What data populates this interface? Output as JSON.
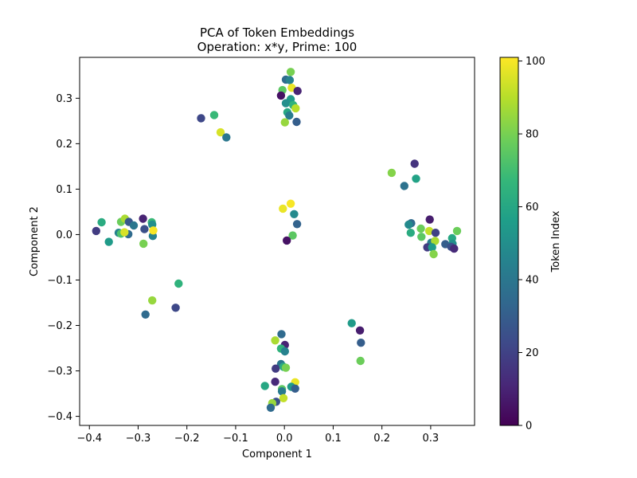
{
  "chart_data": {
    "type": "scatter",
    "title": "PCA of Token Embeddings",
    "subtitle": "Operation: x*y, Prime: 100",
    "xlabel": "Component 1",
    "ylabel": "Component 2",
    "xlim": [
      -0.42,
      0.39
    ],
    "ylim": [
      -0.42,
      0.39
    ],
    "xticks": [
      -0.4,
      -0.3,
      -0.2,
      -0.1,
      0.0,
      0.1,
      0.2,
      0.3
    ],
    "xtick_labels": [
      "−0.4",
      "−0.3",
      "−0.2",
      "−0.1",
      "0.0",
      "0.1",
      "0.2",
      "0.3"
    ],
    "yticks": [
      -0.4,
      -0.3,
      -0.2,
      -0.1,
      0.0,
      0.1,
      0.2,
      0.3
    ],
    "ytick_labels": [
      "−0.4",
      "−0.3",
      "−0.2",
      "−0.1",
      "0.0",
      "0.1",
      "0.2",
      "0.3"
    ],
    "grid": false,
    "colorbar": {
      "label": "Token Index",
      "colormap": "viridis",
      "range": [
        0,
        101
      ],
      "ticks": [
        0,
        20,
        40,
        60,
        80,
        100
      ],
      "tick_labels": [
        "0",
        "20",
        "40",
        "60",
        "80",
        "100"
      ]
    },
    "points": [
      {
        "x": 0.013,
        "y": 0.358,
        "c": 80
      },
      {
        "x": 0.003,
        "y": 0.341,
        "c": 35
      },
      {
        "x": 0.011,
        "y": 0.34,
        "c": 45
      },
      {
        "x": -0.004,
        "y": 0.318,
        "c": 75
      },
      {
        "x": 0.015,
        "y": 0.323,
        "c": 98
      },
      {
        "x": 0.027,
        "y": 0.316,
        "c": 10
      },
      {
        "x": -0.007,
        "y": 0.306,
        "c": 5
      },
      {
        "x": 0.013,
        "y": 0.298,
        "c": 55
      },
      {
        "x": 0.003,
        "y": 0.289,
        "c": 50
      },
      {
        "x": 0.018,
        "y": 0.285,
        "c": 65
      },
      {
        "x": 0.023,
        "y": 0.278,
        "c": 90
      },
      {
        "x": 0.006,
        "y": 0.269,
        "c": 60
      },
      {
        "x": 0.01,
        "y": 0.262,
        "c": 42
      },
      {
        "x": 0.001,
        "y": 0.247,
        "c": 85
      },
      {
        "x": 0.025,
        "y": 0.248,
        "c": 30
      },
      {
        "x": -0.171,
        "y": 0.256,
        "c": 22
      },
      {
        "x": -0.144,
        "y": 0.263,
        "c": 68
      },
      {
        "x": -0.131,
        "y": 0.225,
        "c": 95
      },
      {
        "x": -0.119,
        "y": 0.214,
        "c": 40
      },
      {
        "x": 0.22,
        "y": 0.136,
        "c": 82
      },
      {
        "x": 0.267,
        "y": 0.156,
        "c": 15
      },
      {
        "x": 0.246,
        "y": 0.107,
        "c": 38
      },
      {
        "x": 0.27,
        "y": 0.123,
        "c": 58
      },
      {
        "x": 0.26,
        "y": 0.025,
        "c": 35
      },
      {
        "x": 0.255,
        "y": 0.022,
        "c": 48
      },
      {
        "x": 0.259,
        "y": 0.004,
        "c": 62
      },
      {
        "x": 0.28,
        "y": 0.013,
        "c": 78
      },
      {
        "x": 0.298,
        "y": 0.033,
        "c": 8
      },
      {
        "x": 0.297,
        "y": 0.008,
        "c": 92
      },
      {
        "x": 0.31,
        "y": 0.004,
        "c": 20
      },
      {
        "x": 0.281,
        "y": -0.005,
        "c": 75
      },
      {
        "x": 0.301,
        "y": -0.018,
        "c": 42
      },
      {
        "x": 0.309,
        "y": -0.014,
        "c": 88
      },
      {
        "x": 0.293,
        "y": -0.028,
        "c": 18
      },
      {
        "x": 0.303,
        "y": -0.028,
        "c": 55
      },
      {
        "x": 0.306,
        "y": -0.043,
        "c": 82
      },
      {
        "x": 0.344,
        "y": -0.008,
        "c": 60
      },
      {
        "x": 0.354,
        "y": 0.008,
        "c": 78
      },
      {
        "x": 0.33,
        "y": -0.021,
        "c": 30
      },
      {
        "x": 0.345,
        "y": -0.02,
        "c": 50
      },
      {
        "x": 0.342,
        "y": -0.027,
        "c": 25
      },
      {
        "x": 0.348,
        "y": -0.031,
        "c": 12
      },
      {
        "x": -0.375,
        "y": 0.027,
        "c": 62
      },
      {
        "x": -0.386,
        "y": 0.008,
        "c": 18
      },
      {
        "x": -0.36,
        "y": -0.016,
        "c": 55
      },
      {
        "x": -0.34,
        "y": 0.004,
        "c": 45
      },
      {
        "x": -0.335,
        "y": 0.002,
        "c": 72
      },
      {
        "x": -0.335,
        "y": 0.028,
        "c": 78
      },
      {
        "x": -0.327,
        "y": 0.035,
        "c": 88
      },
      {
        "x": -0.319,
        "y": 0.028,
        "c": 28
      },
      {
        "x": -0.32,
        "y": 0.001,
        "c": 35
      },
      {
        "x": -0.328,
        "y": 0.005,
        "c": 95
      },
      {
        "x": -0.309,
        "y": 0.02,
        "c": 40
      },
      {
        "x": -0.29,
        "y": 0.035,
        "c": 10
      },
      {
        "x": -0.287,
        "y": 0.012,
        "c": 25
      },
      {
        "x": -0.272,
        "y": 0.027,
        "c": 68
      },
      {
        "x": -0.271,
        "y": 0.022,
        "c": 50
      },
      {
        "x": -0.289,
        "y": -0.02,
        "c": 80
      },
      {
        "x": -0.27,
        "y": -0.003,
        "c": 45
      },
      {
        "x": -0.269,
        "y": 0.009,
        "c": 100
      },
      {
        "x": -0.003,
        "y": 0.057,
        "c": 98
      },
      {
        "x": 0.013,
        "y": 0.068,
        "c": 100
      },
      {
        "x": 0.02,
        "y": 0.045,
        "c": 48
      },
      {
        "x": 0.026,
        "y": 0.023,
        "c": 32
      },
      {
        "x": 0.017,
        "y": -0.002,
        "c": 75
      },
      {
        "x": 0.005,
        "y": -0.013,
        "c": 5
      },
      {
        "x": -0.217,
        "y": -0.108,
        "c": 65
      },
      {
        "x": -0.271,
        "y": -0.145,
        "c": 85
      },
      {
        "x": -0.223,
        "y": -0.161,
        "c": 22
      },
      {
        "x": -0.285,
        "y": -0.176,
        "c": 35
      },
      {
        "x": 0.138,
        "y": -0.195,
        "c": 55
      },
      {
        "x": 0.155,
        "y": -0.211,
        "c": 8
      },
      {
        "x": 0.157,
        "y": -0.238,
        "c": 30
      },
      {
        "x": 0.156,
        "y": -0.278,
        "c": 78
      },
      {
        "x": -0.006,
        "y": -0.219,
        "c": 35
      },
      {
        "x": -0.019,
        "y": -0.233,
        "c": 88
      },
      {
        "x": 0.001,
        "y": -0.243,
        "c": 10
      },
      {
        "x": -0.007,
        "y": -0.251,
        "c": 65
      },
      {
        "x": 0.001,
        "y": -0.257,
        "c": 45
      },
      {
        "x": -0.007,
        "y": -0.285,
        "c": 40
      },
      {
        "x": -0.018,
        "y": -0.295,
        "c": 18
      },
      {
        "x": -0.002,
        "y": -0.291,
        "c": 62
      },
      {
        "x": 0.003,
        "y": -0.293,
        "c": 80
      },
      {
        "x": -0.019,
        "y": -0.324,
        "c": 12
      },
      {
        "x": 0.022,
        "y": -0.325,
        "c": 98
      },
      {
        "x": 0.014,
        "y": -0.335,
        "c": 55
      },
      {
        "x": 0.022,
        "y": -0.339,
        "c": 30
      },
      {
        "x": -0.005,
        "y": -0.34,
        "c": 75
      },
      {
        "x": -0.04,
        "y": -0.333,
        "c": 60
      },
      {
        "x": -0.005,
        "y": -0.345,
        "c": 42
      },
      {
        "x": -0.002,
        "y": -0.36,
        "c": 92
      },
      {
        "x": -0.017,
        "y": -0.368,
        "c": 25
      },
      {
        "x": -0.025,
        "y": -0.371,
        "c": 85
      },
      {
        "x": -0.028,
        "y": -0.381,
        "c": 35
      }
    ]
  }
}
